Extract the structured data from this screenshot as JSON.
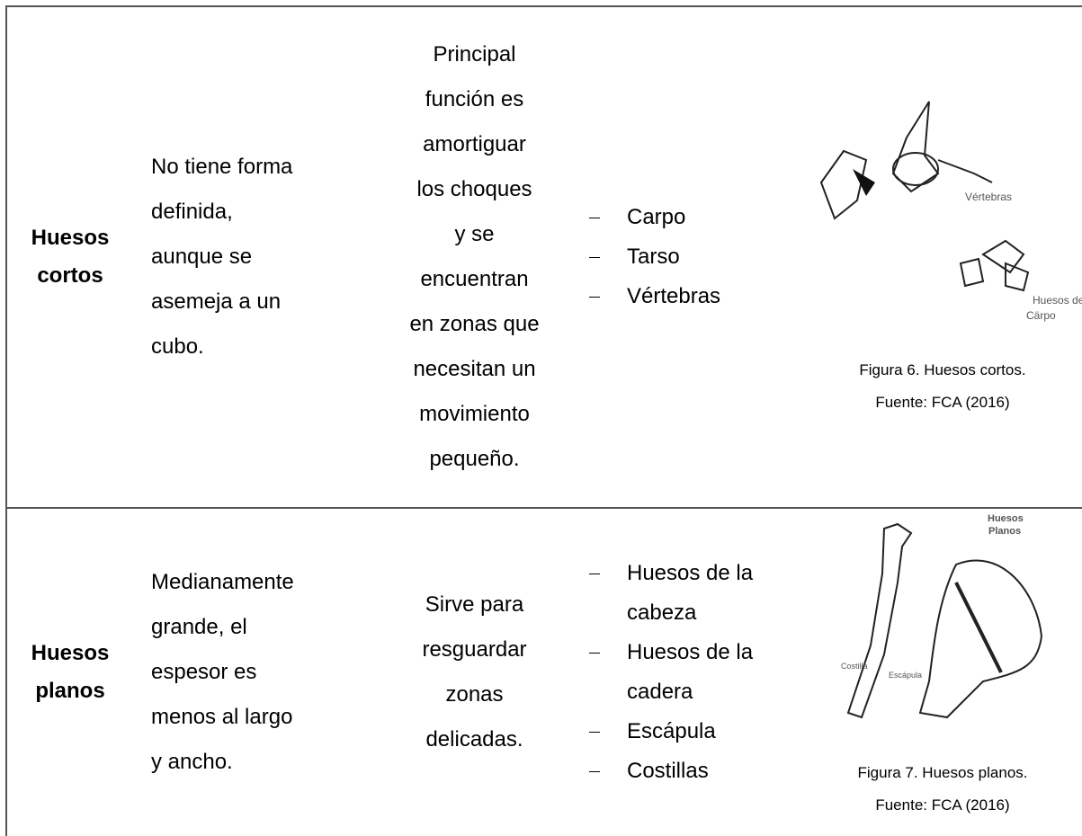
{
  "table": {
    "rows": [
      {
        "name": "Huesos cortos",
        "shape": [
          "No tiene forma",
          "definida,",
          "aunque se",
          "asemeja a un",
          "cubo."
        ],
        "function": [
          "Principal",
          "función es",
          "amortiguar",
          "los choques",
          "y se",
          "encuentran",
          "en zonas que",
          "necesitan un",
          "movimiento",
          "pequeño."
        ],
        "examples": [
          "Carpo",
          "Tarso",
          "Vértebras"
        ],
        "figure": {
          "labels": [
            "Vértebras",
            "Huesos del",
            "Cärpo"
          ],
          "caption": [
            "Figura 6. Huesos cortos.",
            "Fuente: FCA (2016)"
          ]
        }
      },
      {
        "name": "Huesos planos",
        "shape": [
          "Medianamente",
          "grande, el",
          "espesor es",
          "menos al largo",
          "y ancho."
        ],
        "function": [
          "Sirve para",
          "resguardar",
          "zonas",
          "delicadas."
        ],
        "examples": [
          "Huesos de la cabeza",
          "Huesos de la cadera",
          "Escápula",
          "Costillas"
        ],
        "figure": {
          "labels": [
            "Huesos",
            "Planos",
            "Costilla",
            "Escápula"
          ],
          "caption": [
            "Figura 7. Huesos planos.",
            "Fuente: FCA (2016)"
          ]
        }
      }
    ]
  }
}
